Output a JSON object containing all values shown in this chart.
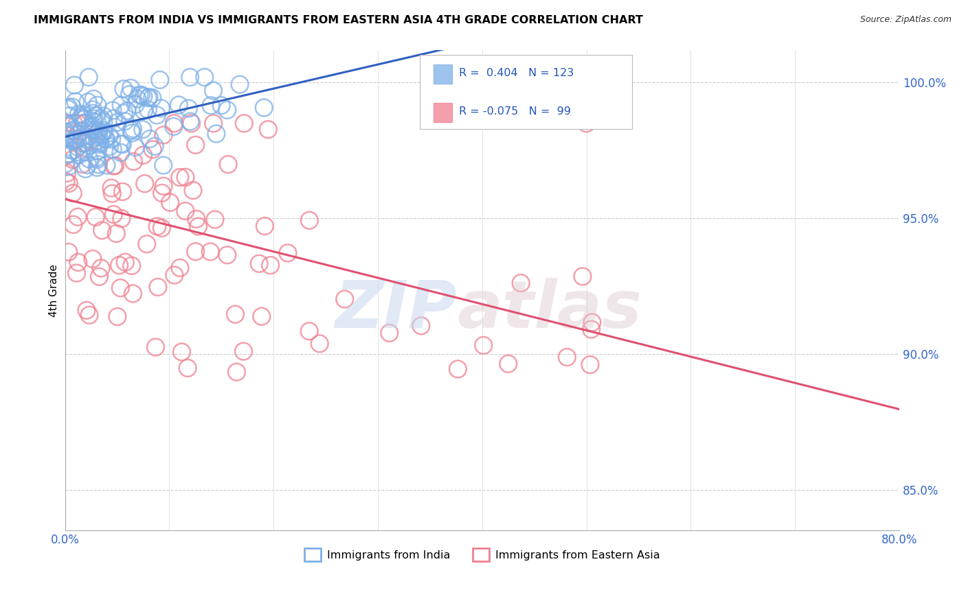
{
  "title": "IMMIGRANTS FROM INDIA VS IMMIGRANTS FROM EASTERN ASIA 4TH GRADE CORRELATION CHART",
  "source_text": "Source: ZipAtlas.com",
  "ylabel": "4th Grade",
  "r_india": 0.404,
  "n_india": 123,
  "r_eastern_asia": -0.075,
  "n_eastern_asia": 99,
  "india_color": "#7EB0E8",
  "eastern_asia_color": "#F08090",
  "india_line_color": "#3060C0",
  "eastern_asia_line_color": "#E05070",
  "background_color": "#ffffff",
  "legend_india": "Immigrants from India",
  "legend_eastern_asia": "Immigrants from Eastern Asia",
  "xlim": [
    0.0,
    0.8
  ],
  "ylim": [
    0.835,
    1.012
  ],
  "ytick_values": [
    1.0,
    0.95,
    0.9,
    0.85
  ],
  "ytick_labels": [
    "100.0%",
    "95.0%",
    "90.0%",
    "85.0%"
  ],
  "xtick_values": [
    0.0,
    0.1,
    0.2,
    0.3,
    0.4,
    0.5,
    0.6,
    0.7,
    0.8
  ],
  "xtick_labels": [
    "0.0%",
    "",
    "",
    "",
    "",
    "",
    "",
    "",
    "80.0%"
  ]
}
